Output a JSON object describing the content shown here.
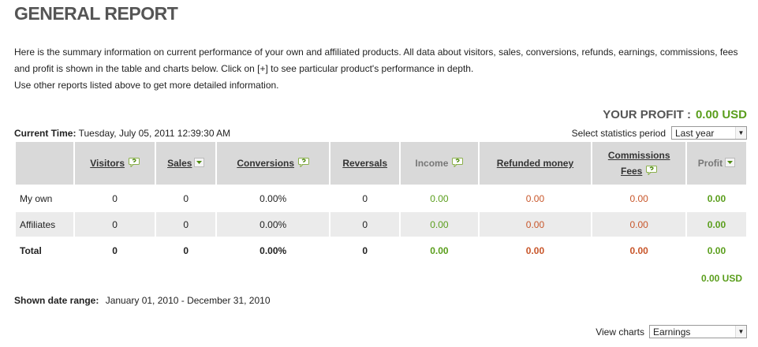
{
  "page": {
    "title": "GENERAL REPORT",
    "intro_line1": "Here is the summary information on current performance of your own and affiliated products. All data about visitors, sales, conversions, refunds, earnings, commissions, fees and profit is shown in the table and charts below. Click on [+] to see particular product's performance in depth.",
    "intro_line2": "Use other reports listed above to get more detailed information."
  },
  "profit": {
    "label": "YOUR PROFIT :",
    "value": "0.00 USD"
  },
  "current_time": {
    "label": "Current Time:",
    "value": "Tuesday, July 05, 2011 12:39:30 AM"
  },
  "period": {
    "label": "Select statistics period",
    "selected": "Last year"
  },
  "columns": {
    "visitors": "Visitors",
    "sales": "Sales",
    "conversions": "Conversions",
    "reversals": "Reversals",
    "income": "Income",
    "refunded": "Refunded money",
    "commissions": "Commissions",
    "fees": "Fees",
    "profit": "Profit"
  },
  "rows": [
    {
      "label": "My own",
      "visitors": "0",
      "sales": "0",
      "conversions": "0.00%",
      "reversals": "0",
      "income": "0.00",
      "refunded": "0.00",
      "commissions": "0.00",
      "profit": "0.00"
    },
    {
      "label": "Affiliates",
      "visitors": "0",
      "sales": "0",
      "conversions": "0.00%",
      "reversals": "0",
      "income": "0.00",
      "refunded": "0.00",
      "commissions": "0.00",
      "profit": "0.00"
    },
    {
      "label": "Total",
      "visitors": "0",
      "sales": "0",
      "conversions": "0.00%",
      "reversals": "0",
      "income": "0.00",
      "refunded": "0.00",
      "commissions": "0.00",
      "profit": "0.00"
    }
  ],
  "total_profit": "0.00 USD",
  "shown_range": {
    "label": "Shown date range:",
    "value": "January 01, 2010 - December 31, 2010"
  },
  "view_charts": {
    "label": "View charts",
    "selected": "Earnings"
  },
  "colors": {
    "profit_green": "#5a9e1c",
    "refund_orange": "#c8562a",
    "header_gray": "#d9d9d9",
    "alt_row": "#ebebeb"
  },
  "icons": {
    "info": "help-bubble-icon",
    "sort": "sort-down-icon",
    "select": "chevron-down-icon"
  }
}
